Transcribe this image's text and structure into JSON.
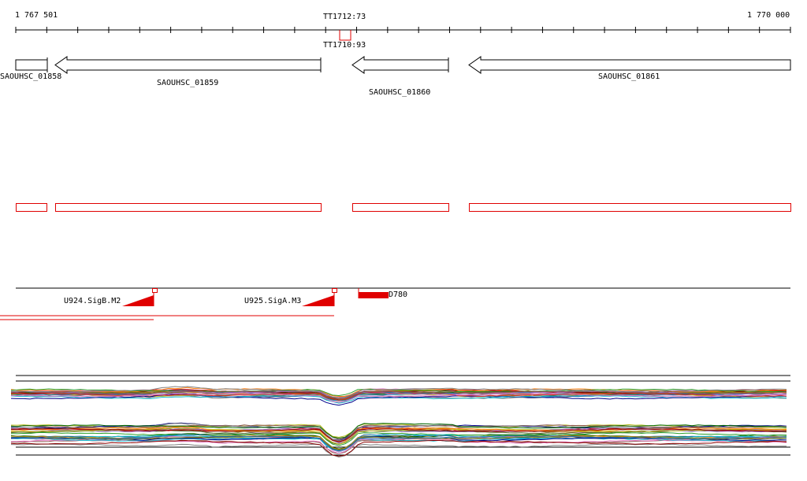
{
  "ruler": {
    "start_label": "1 767 501",
    "end_label": "1 770 000",
    "ticks": 26
  },
  "terminators": {
    "top_label": "TT1712:73",
    "bottom_label": "TT1710:93"
  },
  "genes": [
    {
      "id": "SAOUHSC_01858",
      "strand": "+"
    },
    {
      "id": "SAOUHSC_01859",
      "strand": "-"
    },
    {
      "id": "SAOUHSC_01860",
      "strand": "-"
    },
    {
      "id": "SAOUHSC_01861",
      "strand": "-"
    }
  ],
  "promoters": [
    {
      "label": "U924.SigB.M2"
    },
    {
      "label": "U925.SigA.M3"
    }
  ],
  "features": [
    {
      "label": "D780"
    }
  ],
  "colors": {
    "feature_outline": "#e00000",
    "line": "#000000",
    "profile_palette": [
      "#1f77b4",
      "#2ca02c",
      "#d62728",
      "#9467bd",
      "#8c564b",
      "#e377c2",
      "#7f7f7f",
      "#bcbd22",
      "#17becf",
      "#ff7f0e",
      "#006400",
      "#8b0000",
      "#00008b",
      "#b8860b",
      "#556b2f"
    ]
  }
}
